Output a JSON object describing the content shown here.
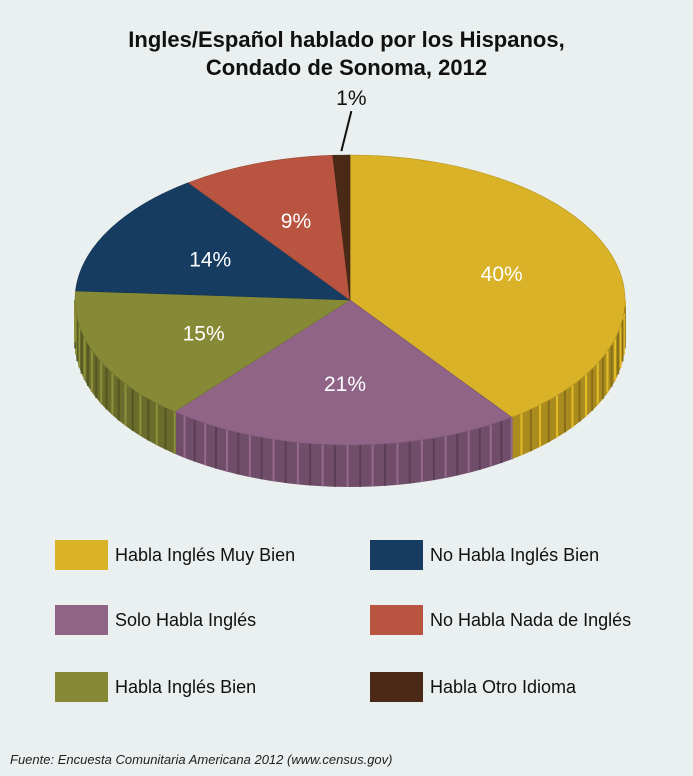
{
  "chart_data": {
    "type": "pie",
    "title_lines": [
      "Ingles/Español hablado por los Hispanos,",
      "Condado de Sonoma, 2012"
    ],
    "slices": [
      {
        "name": "Habla Inglés Muy Bien",
        "value": 40,
        "label": "40%",
        "color": "#d9b227"
      },
      {
        "name": "Solo Habla Inglés",
        "value": 21,
        "label": "21%",
        "color": "#8f6487"
      },
      {
        "name": "Habla Inglés Bien",
        "value": 15,
        "label": "15%",
        "color": "#868a36"
      },
      {
        "name": "No Habla Inglés Bien",
        "value": 14,
        "label": "14%",
        "color": "#163d61"
      },
      {
        "name": "No Habla Nada de Inglés",
        "value": 9,
        "label": "9%",
        "color": "#b85440"
      },
      {
        "name": "Habla Otro Idioma",
        "value": 1,
        "label": "1%",
        "color": "#4a2a16"
      }
    ],
    "legend": "bottom",
    "source": "Fuente: Encuesta Comunitaria Americana 2012 (www.census.gov)"
  }
}
